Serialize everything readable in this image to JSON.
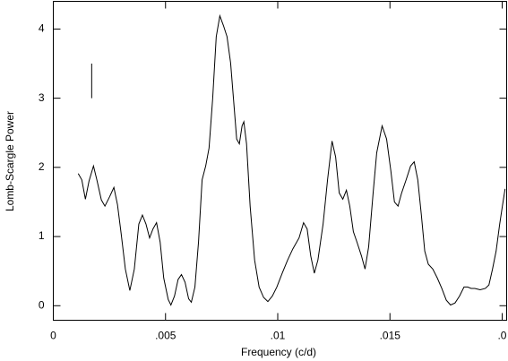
{
  "chart_data": {
    "type": "line",
    "xlabel": "Frequency (c/d)",
    "ylabel": "Lomb-Scargle Power",
    "color": "#000000",
    "xlim": [
      0,
      0.0202
    ],
    "ylim": [
      -0.21,
      4.4
    ],
    "xticks": [
      0,
      {
        "value": 0.005,
        "label": ".005"
      },
      {
        "value": 0.01,
        "label": ".01"
      },
      {
        "value": 0.015,
        "label": ".015"
      },
      {
        "value": 0.02,
        "label": ".0"
      }
    ],
    "yticks": [
      0,
      1,
      2,
      3,
      4
    ],
    "marker": {
      "x": 0.00171,
      "y": [
        3.0,
        3.5
      ]
    },
    "x": [
      0.00111,
      0.00127,
      0.00143,
      0.00159,
      0.00179,
      0.00194,
      0.00214,
      0.0023,
      0.0025,
      0.0027,
      0.00286,
      0.00302,
      0.00321,
      0.00341,
      0.00361,
      0.00381,
      0.00397,
      0.00413,
      0.00429,
      0.00444,
      0.0046,
      0.00476,
      0.00492,
      0.00512,
      0.00524,
      0.0054,
      0.00556,
      0.00571,
      0.00587,
      0.00603,
      0.00615,
      0.00631,
      0.00647,
      0.00663,
      0.00679,
      0.00694,
      0.0071,
      0.00726,
      0.00742,
      0.00758,
      0.00774,
      0.0079,
      0.00806,
      0.00817,
      0.00829,
      0.00841,
      0.00849,
      0.00861,
      0.00877,
      0.00897,
      0.00917,
      0.00937,
      0.00956,
      0.00976,
      0.00996,
      0.0102,
      0.01044,
      0.01067,
      0.01095,
      0.01115,
      0.01131,
      0.01147,
      0.01163,
      0.01179,
      0.01202,
      0.01222,
      0.01242,
      0.01258,
      0.01274,
      0.0129,
      0.01306,
      0.01321,
      0.01337,
      0.01353,
      0.01373,
      0.01389,
      0.01405,
      0.01425,
      0.01441,
      0.01465,
      0.01485,
      0.01504,
      0.0152,
      0.01536,
      0.01552,
      0.01572,
      0.01592,
      0.01608,
      0.01624,
      0.0164,
      0.01655,
      0.01671,
      0.01691,
      0.01711,
      0.01731,
      0.01751,
      0.0177,
      0.0179,
      0.0181,
      0.0183,
      0.01846,
      0.01862,
      0.01878,
      0.01902,
      0.01925,
      0.01941,
      0.01957,
      0.01973,
      0.01989,
      0.02001,
      0.02013
    ],
    "values": [
      1.91,
      1.82,
      1.54,
      1.8,
      2.02,
      1.82,
      1.53,
      1.44,
      1.57,
      1.71,
      1.46,
      1.05,
      0.53,
      0.22,
      0.53,
      1.18,
      1.31,
      1.18,
      0.98,
      1.11,
      1.2,
      0.92,
      0.4,
      0.09,
      0.01,
      0.14,
      0.38,
      0.45,
      0.34,
      0.1,
      0.05,
      0.27,
      0.92,
      1.82,
      2.02,
      2.28,
      2.99,
      3.89,
      4.19,
      4.05,
      3.89,
      3.51,
      2.86,
      2.41,
      2.34,
      2.6,
      2.66,
      2.34,
      1.44,
      0.66,
      0.27,
      0.12,
      0.06,
      0.14,
      0.27,
      0.47,
      0.66,
      0.82,
      0.98,
      1.2,
      1.11,
      0.72,
      0.47,
      0.66,
      1.18,
      1.82,
      2.38,
      2.15,
      1.63,
      1.54,
      1.67,
      1.44,
      1.07,
      0.92,
      0.72,
      0.53,
      0.85,
      1.63,
      2.21,
      2.6,
      2.41,
      1.95,
      1.5,
      1.44,
      1.63,
      1.82,
      2.02,
      2.08,
      1.82,
      1.31,
      0.79,
      0.6,
      0.53,
      0.4,
      0.25,
      0.08,
      0.01,
      0.04,
      0.14,
      0.27,
      0.27,
      0.25,
      0.25,
      0.23,
      0.25,
      0.3,
      0.53,
      0.79,
      1.18,
      1.44,
      1.69
    ]
  }
}
